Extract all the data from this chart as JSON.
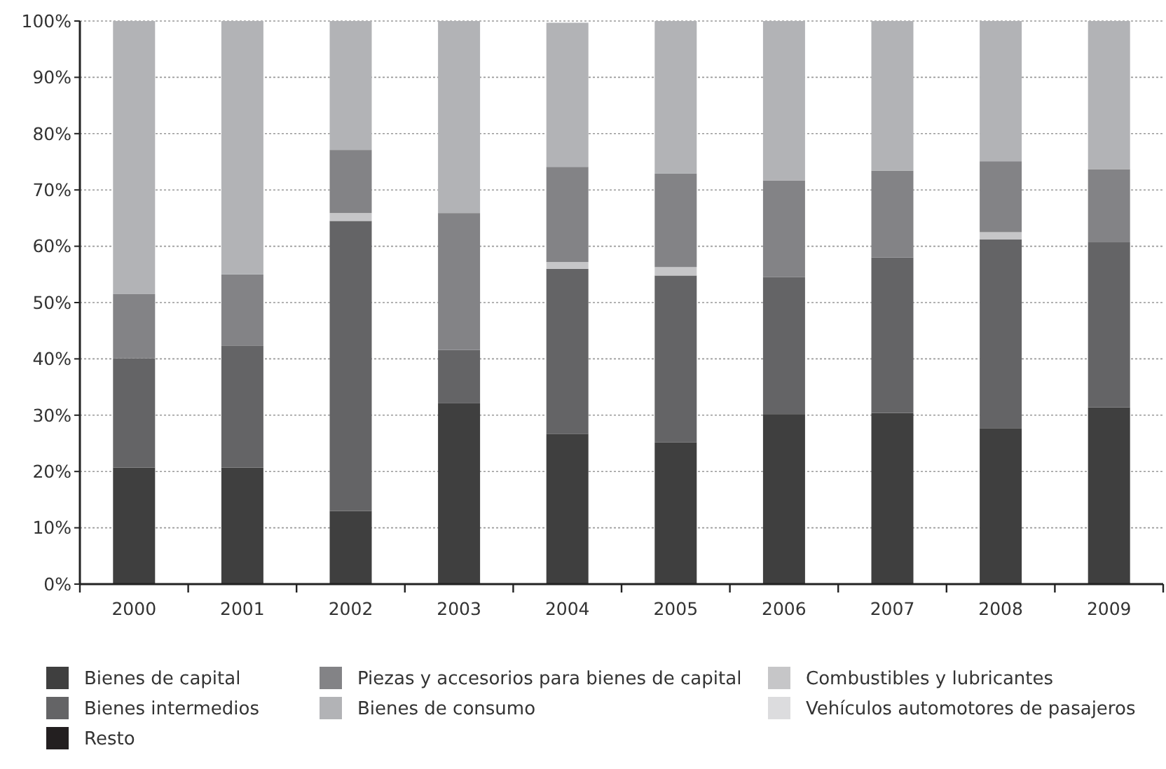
{
  "chart_data": {
    "type": "bar",
    "stacked": true,
    "categories": [
      "2000",
      "2001",
      "2002",
      "2003",
      "2004",
      "2005",
      "2006",
      "2007",
      "2008",
      "2009"
    ],
    "series": [
      {
        "name": "Bienes de capital",
        "color": "#3f3f3f",
        "values": [
          20.7,
          20.7,
          13.0,
          32.1,
          26.7,
          25.2,
          30.2,
          30.4,
          27.7,
          31.4
        ]
      },
      {
        "name": "Bienes intermedios",
        "color": "#646466",
        "values": [
          19.4,
          21.6,
          51.5,
          9.5,
          29.3,
          29.6,
          24.3,
          27.6,
          33.5,
          29.3
        ]
      },
      {
        "name": "Combustibles y lubricantes",
        "color": "#c6c6c8",
        "values": [
          0,
          0,
          1.4,
          0,
          1.2,
          1.5,
          0,
          0,
          1.3,
          0
        ]
      },
      {
        "name": "Piezas y accesorios para bienes de capital",
        "color": "#838386",
        "values": [
          11.4,
          12.7,
          11.2,
          24.3,
          16.9,
          16.6,
          17.2,
          15.4,
          12.6,
          13.0
        ]
      },
      {
        "name": "Bienes de consumo",
        "color": "#b2b3b6",
        "values": [
          48.5,
          45.0,
          22.9,
          34.1,
          25.6,
          27.1,
          28.3,
          26.6,
          24.9,
          26.3
        ]
      },
      {
        "name": "Vehículos automotores de pasajeros",
        "color": "#dcdcde",
        "values": [
          0,
          0,
          0,
          0,
          0,
          0,
          0,
          0,
          0,
          0
        ]
      },
      {
        "name": "Resto",
        "color": "#231f20",
        "values": [
          0,
          0,
          0,
          0,
          0,
          0,
          0,
          0,
          0,
          0
        ]
      }
    ],
    "ylim": [
      0,
      100
    ],
    "yticks": [
      {
        "value": 0,
        "label": "0%"
      },
      {
        "value": 10,
        "label": "10%"
      },
      {
        "value": 20,
        "label": "20%"
      },
      {
        "value": 30,
        "label": "30%"
      },
      {
        "value": 40,
        "label": "40%"
      },
      {
        "value": 50,
        "label": "50%"
      },
      {
        "value": 60,
        "label": "60%"
      },
      {
        "value": 70,
        "label": "70%"
      },
      {
        "value": 80,
        "label": "80%"
      },
      {
        "value": 90,
        "label": "90%"
      },
      {
        "value": 100,
        "label": "100%"
      }
    ],
    "grid": "y",
    "legend": "bottom"
  }
}
